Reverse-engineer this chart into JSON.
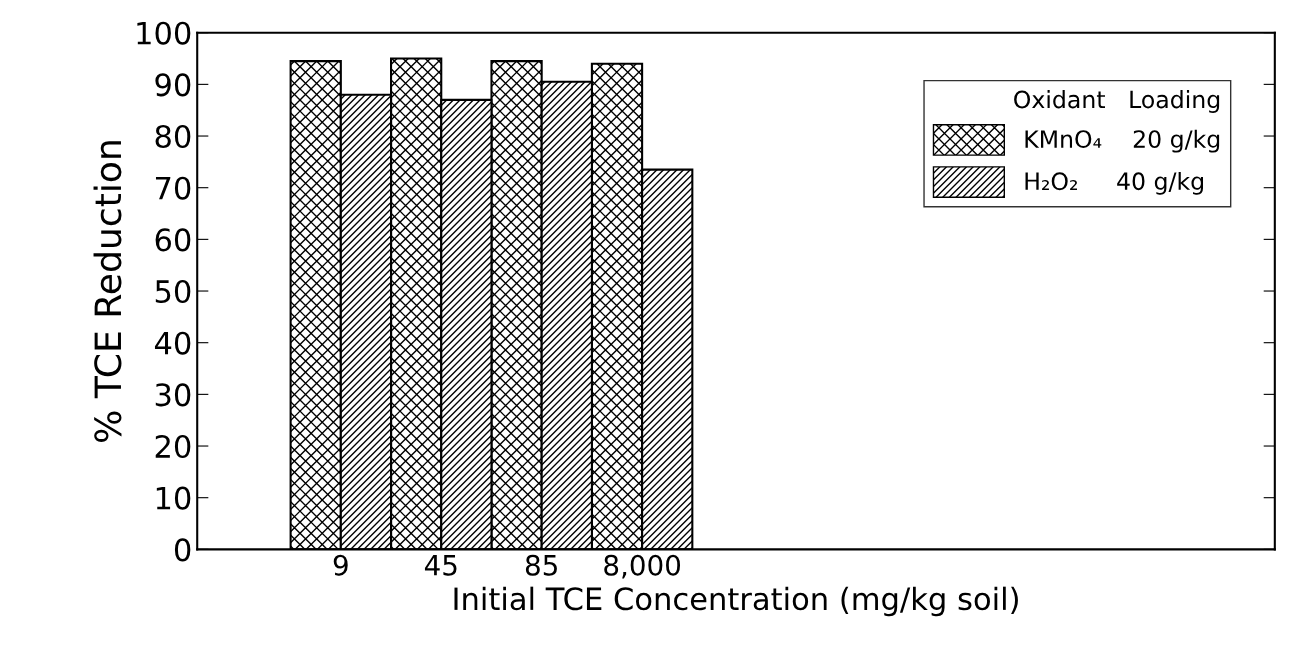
{
  "chart_data": {
    "type": "bar",
    "xlabel": "Initial TCE Concentration (mg/kg soil)",
    "ylabel": "% TCE Reduction",
    "categories": [
      "9",
      "45",
      "85",
      "8,000"
    ],
    "series": [
      {
        "name": "KMnO₄    20 g/kg",
        "color": "#000000",
        "values": [
          94.5,
          95,
          94.5,
          94
        ]
      },
      {
        "name": "H₂O₂     40 g/kg",
        "color": "#000000",
        "values": [
          88,
          87,
          90.5,
          73.5
        ]
      }
    ],
    "legend_title": "Oxidant   Loading",
    "legend": "top right",
    "grid": false,
    "ylim": [
      0,
      100
    ],
    "yticks": [
      0,
      10,
      20,
      30,
      40,
      50,
      60,
      70,
      80,
      90,
      100
    ]
  }
}
